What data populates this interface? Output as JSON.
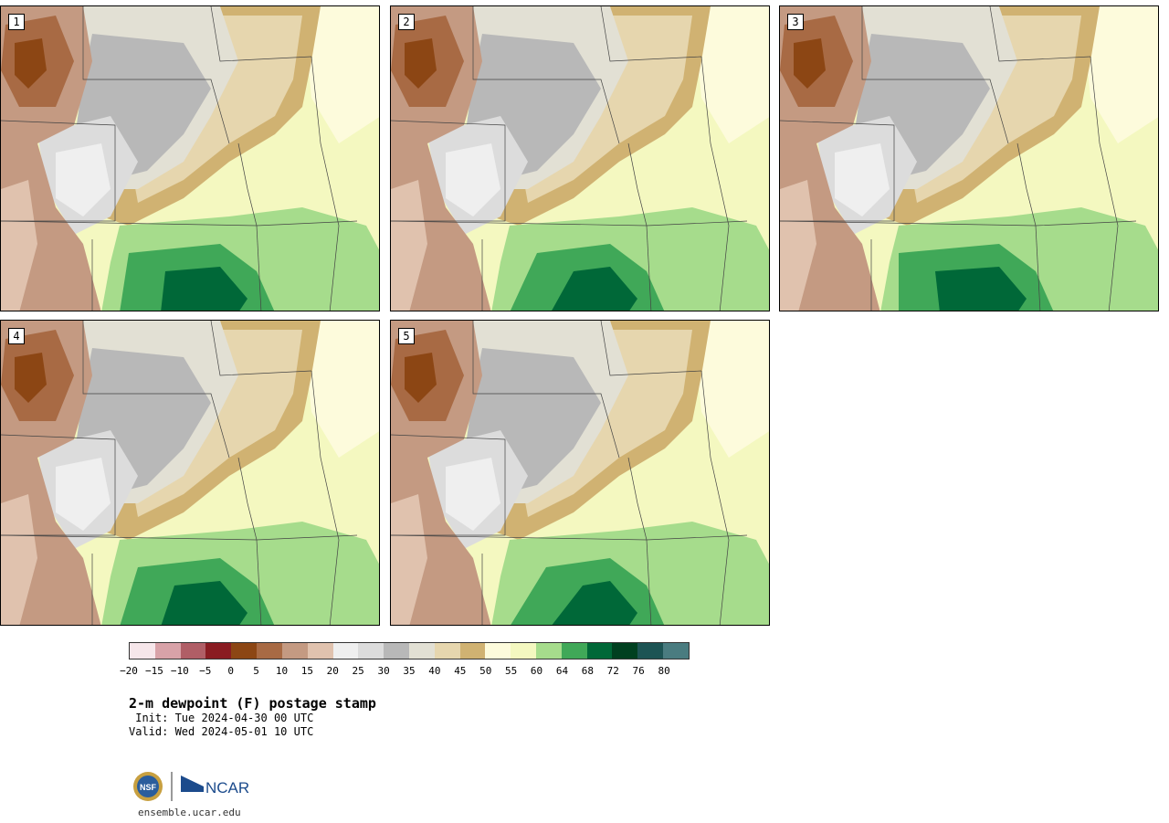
{
  "panels": [
    {
      "label": "1"
    },
    {
      "label": "2"
    },
    {
      "label": "3"
    },
    {
      "label": "4"
    },
    {
      "label": "5"
    }
  ],
  "colorbar": {
    "colors": [
      "#f6e6ea",
      "#d8a2a8",
      "#b05e66",
      "#8a1c22",
      "#8c4614",
      "#a86a44",
      "#c49a82",
      "#e0c2ae",
      "#efefef",
      "#dcdcdc",
      "#b8b8b8",
      "#e2e0d4",
      "#e6d6ae",
      "#d0b272",
      "#fdfbdc",
      "#f4f8c0",
      "#a6dc8c",
      "#40a858",
      "#006838",
      "#004020",
      "#1d5454",
      "#4a7c80"
    ],
    "ticks": [
      "−20",
      "−15",
      "−10",
      "−5",
      "0",
      "5",
      "10",
      "15",
      "20",
      "25",
      "30",
      "35",
      "40",
      "45",
      "50",
      "55",
      "60",
      "64",
      "68",
      "72",
      "76",
      "80"
    ]
  },
  "title": "2-m dewpoint (F) postage stamp",
  "init": " Init: Tue 2024-04-30 00 UTC",
  "valid": "Valid: Wed 2024-05-01 10 UTC",
  "logo": {
    "nsf": "NSF",
    "ncar": "NCAR"
  },
  "site": "ensemble.ucar.edu"
}
